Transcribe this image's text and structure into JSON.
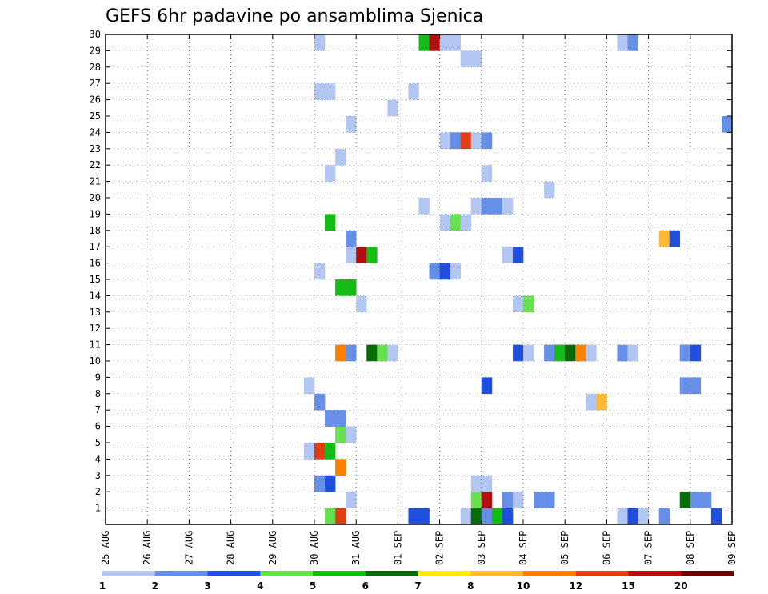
{
  "chart_data": {
    "type": "heatmap",
    "title": "GEFS 6hr padavine po ansamblima Sjenica",
    "xlabel": "",
    "ylabel": "",
    "x_tick_labels": [
      "25 AUG",
      "26 AUG",
      "27 AUG",
      "28 AUG",
      "29 AUG",
      "30 AUG",
      "31 AUG",
      "01 SEP",
      "02 SEP",
      "03 SEP",
      "04 SEP",
      "05 SEP",
      "06 SEP",
      "07 SEP",
      "08 SEP",
      "09 SEP"
    ],
    "x_range_days": [
      0,
      15
    ],
    "y_range": [
      0,
      30
    ],
    "y_ticks": [
      1,
      2,
      3,
      4,
      5,
      6,
      7,
      8,
      9,
      10,
      11,
      12,
      13,
      14,
      15,
      16,
      17,
      18,
      19,
      20,
      21,
      22,
      23,
      24,
      25,
      26,
      27,
      28,
      29,
      30
    ],
    "grid": true,
    "colorbar": {
      "thresholds": [
        "1",
        "2",
        "3",
        "4",
        "5",
        "6",
        "7",
        "8",
        "10",
        "12",
        "15",
        "20"
      ],
      "colors": [
        "#b3c6f2",
        "#6690e8",
        "#1f4fdc",
        "#66e04d",
        "#14bb14",
        "#0a6b0a",
        "#ffeb00",
        "#ffb833",
        "#ff8000",
        "#e03d14",
        "#b30f0f",
        "#6b0000"
      ]
    },
    "cells": [
      {
        "d": 5.25,
        "m": 0,
        "c": 3
      },
      {
        "d": 5.5,
        "m": 0,
        "c": 9
      },
      {
        "d": 7.25,
        "m": 0,
        "c": 2
      },
      {
        "d": 7.5,
        "m": 0,
        "c": 2
      },
      {
        "d": 8.5,
        "m": 0,
        "c": 0
      },
      {
        "d": 8.75,
        "m": 0,
        "c": 5
      },
      {
        "d": 9,
        "m": 0,
        "c": 1
      },
      {
        "d": 9.25,
        "m": 0,
        "c": 4
      },
      {
        "d": 9.5,
        "m": 0,
        "c": 2
      },
      {
        "d": 12.25,
        "m": 0,
        "c": 0
      },
      {
        "d": 12.5,
        "m": 0,
        "c": 2
      },
      {
        "d": 12.75,
        "m": 0,
        "c": 0
      },
      {
        "d": 13.25,
        "m": 0,
        "c": 1
      },
      {
        "d": 14.5,
        "m": 0,
        "c": 2
      },
      {
        "d": 5.75,
        "m": 1,
        "c": 0
      },
      {
        "d": 8.75,
        "m": 1,
        "c": 3
      },
      {
        "d": 9,
        "m": 1,
        "c": 10
      },
      {
        "d": 9.5,
        "m": 1,
        "c": 1
      },
      {
        "d": 9.75,
        "m": 1,
        "c": 0
      },
      {
        "d": 10.25,
        "m": 1,
        "c": 1
      },
      {
        "d": 10.5,
        "m": 1,
        "c": 1
      },
      {
        "d": 13.75,
        "m": 1,
        "c": 5
      },
      {
        "d": 14,
        "m": 1,
        "c": 1
      },
      {
        "d": 14.25,
        "m": 1,
        "c": 1
      },
      {
        "d": 5,
        "m": 2,
        "c": 1
      },
      {
        "d": 5.25,
        "m": 2,
        "c": 2
      },
      {
        "d": 8.75,
        "m": 2,
        "c": 0
      },
      {
        "d": 9,
        "m": 2,
        "c": 0
      },
      {
        "d": 5.5,
        "m": 3,
        "c": 8
      },
      {
        "d": 4.75,
        "m": 4,
        "c": 0
      },
      {
        "d": 5,
        "m": 4,
        "c": 9
      },
      {
        "d": 5.25,
        "m": 4,
        "c": 4
      },
      {
        "d": 5.5,
        "m": 5,
        "c": 3
      },
      {
        "d": 5.75,
        "m": 5,
        "c": 0
      },
      {
        "d": 5.25,
        "m": 6,
        "c": 1
      },
      {
        "d": 5.5,
        "m": 6,
        "c": 1
      },
      {
        "d": 5,
        "m": 7,
        "c": 1
      },
      {
        "d": 11.5,
        "m": 7,
        "c": 0
      },
      {
        "d": 11.75,
        "m": 7,
        "c": 7
      },
      {
        "d": 4.75,
        "m": 8,
        "c": 0
      },
      {
        "d": 9,
        "m": 8,
        "c": 2
      },
      {
        "d": 13.75,
        "m": 8,
        "c": 1
      },
      {
        "d": 14,
        "m": 8,
        "c": 1
      },
      {
        "d": 5.5,
        "m": 10,
        "c": 8
      },
      {
        "d": 5.75,
        "m": 10,
        "c": 1
      },
      {
        "d": 6.25,
        "m": 10,
        "c": 5
      },
      {
        "d": 6.5,
        "m": 10,
        "c": 3
      },
      {
        "d": 6.75,
        "m": 10,
        "c": 0
      },
      {
        "d": 9.75,
        "m": 10,
        "c": 2
      },
      {
        "d": 10,
        "m": 10,
        "c": 0
      },
      {
        "d": 10.5,
        "m": 10,
        "c": 1
      },
      {
        "d": 10.75,
        "m": 10,
        "c": 4
      },
      {
        "d": 11,
        "m": 10,
        "c": 5
      },
      {
        "d": 11.25,
        "m": 10,
        "c": 8
      },
      {
        "d": 11.5,
        "m": 10,
        "c": 0
      },
      {
        "d": 12.25,
        "m": 10,
        "c": 1
      },
      {
        "d": 12.5,
        "m": 10,
        "c": 0
      },
      {
        "d": 13.75,
        "m": 10,
        "c": 1
      },
      {
        "d": 14,
        "m": 10,
        "c": 2
      },
      {
        "d": 6,
        "m": 13,
        "c": 0
      },
      {
        "d": 9.75,
        "m": 13,
        "c": 0
      },
      {
        "d": 10,
        "m": 13,
        "c": 3
      },
      {
        "d": 5.5,
        "m": 14,
        "c": 4
      },
      {
        "d": 5.75,
        "m": 14,
        "c": 4
      },
      {
        "d": 5,
        "m": 15,
        "c": 0
      },
      {
        "d": 7.75,
        "m": 15,
        "c": 1
      },
      {
        "d": 8,
        "m": 15,
        "c": 2
      },
      {
        "d": 8.25,
        "m": 15,
        "c": 0
      },
      {
        "d": 5.75,
        "m": 16,
        "c": 0
      },
      {
        "d": 6,
        "m": 16,
        "c": 10
      },
      {
        "d": 6.25,
        "m": 16,
        "c": 4
      },
      {
        "d": 9.5,
        "m": 16,
        "c": 0
      },
      {
        "d": 9.75,
        "m": 16,
        "c": 2
      },
      {
        "d": 5.75,
        "m": 17,
        "c": 1
      },
      {
        "d": 13.25,
        "m": 17,
        "c": 7
      },
      {
        "d": 13.5,
        "m": 17,
        "c": 2
      },
      {
        "d": 5.25,
        "m": 18,
        "c": 4
      },
      {
        "d": 8,
        "m": 18,
        "c": 0
      },
      {
        "d": 8.25,
        "m": 18,
        "c": 3
      },
      {
        "d": 8.5,
        "m": 18,
        "c": 0
      },
      {
        "d": 7.5,
        "m": 19,
        "c": 0
      },
      {
        "d": 8.75,
        "m": 19,
        "c": 0
      },
      {
        "d": 9,
        "m": 19,
        "c": 1
      },
      {
        "d": 9.25,
        "m": 19,
        "c": 1
      },
      {
        "d": 9.5,
        "m": 19,
        "c": 0
      },
      {
        "d": 10.5,
        "m": 20,
        "c": 0
      },
      {
        "d": 5.25,
        "m": 21,
        "c": 0
      },
      {
        "d": 9,
        "m": 21,
        "c": 0
      },
      {
        "d": 5.5,
        "m": 22,
        "c": 0
      },
      {
        "d": 8,
        "m": 23,
        "c": 0
      },
      {
        "d": 8.25,
        "m": 23,
        "c": 1
      },
      {
        "d": 8.5,
        "m": 23,
        "c": 9
      },
      {
        "d": 8.75,
        "m": 23,
        "c": 0
      },
      {
        "d": 9,
        "m": 23,
        "c": 1
      },
      {
        "d": 5.75,
        "m": 24,
        "c": 0
      },
      {
        "d": 14.75,
        "m": 24,
        "c": 1
      },
      {
        "d": 6.75,
        "m": 25,
        "c": 0
      },
      {
        "d": 5,
        "m": 26,
        "c": 0
      },
      {
        "d": 5.25,
        "m": 26,
        "c": 0
      },
      {
        "d": 7.25,
        "m": 26,
        "c": 0
      },
      {
        "d": 8.5,
        "m": 28,
        "c": 0
      },
      {
        "d": 8.75,
        "m": 28,
        "c": 0
      },
      {
        "d": 5,
        "m": 29,
        "c": 0
      },
      {
        "d": 7.5,
        "m": 29,
        "c": 4
      },
      {
        "d": 7.75,
        "m": 29,
        "c": 10
      },
      {
        "d": 8,
        "m": 29,
        "c": 0
      },
      {
        "d": 8.25,
        "m": 29,
        "c": 0
      },
      {
        "d": 12.25,
        "m": 29,
        "c": 0
      },
      {
        "d": 12.5,
        "m": 29,
        "c": 1
      }
    ]
  }
}
